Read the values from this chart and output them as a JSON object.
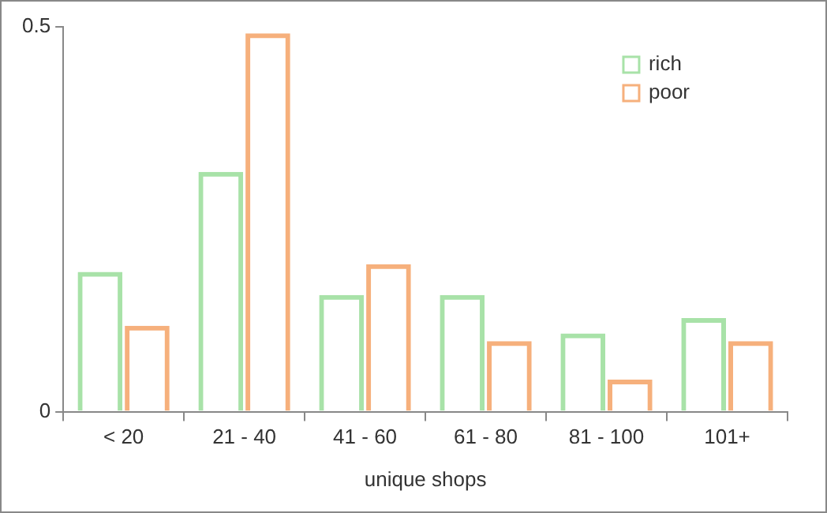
{
  "chart_data": {
    "type": "bar",
    "xlabel": "unique shops",
    "categories": [
      "< 20",
      "21 - 40",
      "41 - 60",
      "61 - 80",
      "81 - 100",
      "101+"
    ],
    "series": [
      {
        "name": "rich",
        "color": "#a8e2a8",
        "values": [
          0.18,
          0.31,
          0.15,
          0.15,
          0.1,
          0.12
        ]
      },
      {
        "name": "poor",
        "color": "#f6b07c",
        "values": [
          0.11,
          0.49,
          0.19,
          0.09,
          0.04,
          0.09
        ]
      }
    ],
    "ylim": [
      0,
      0.5
    ],
    "yticks": [
      0,
      0.5
    ],
    "grid": false,
    "legend": "top right"
  }
}
